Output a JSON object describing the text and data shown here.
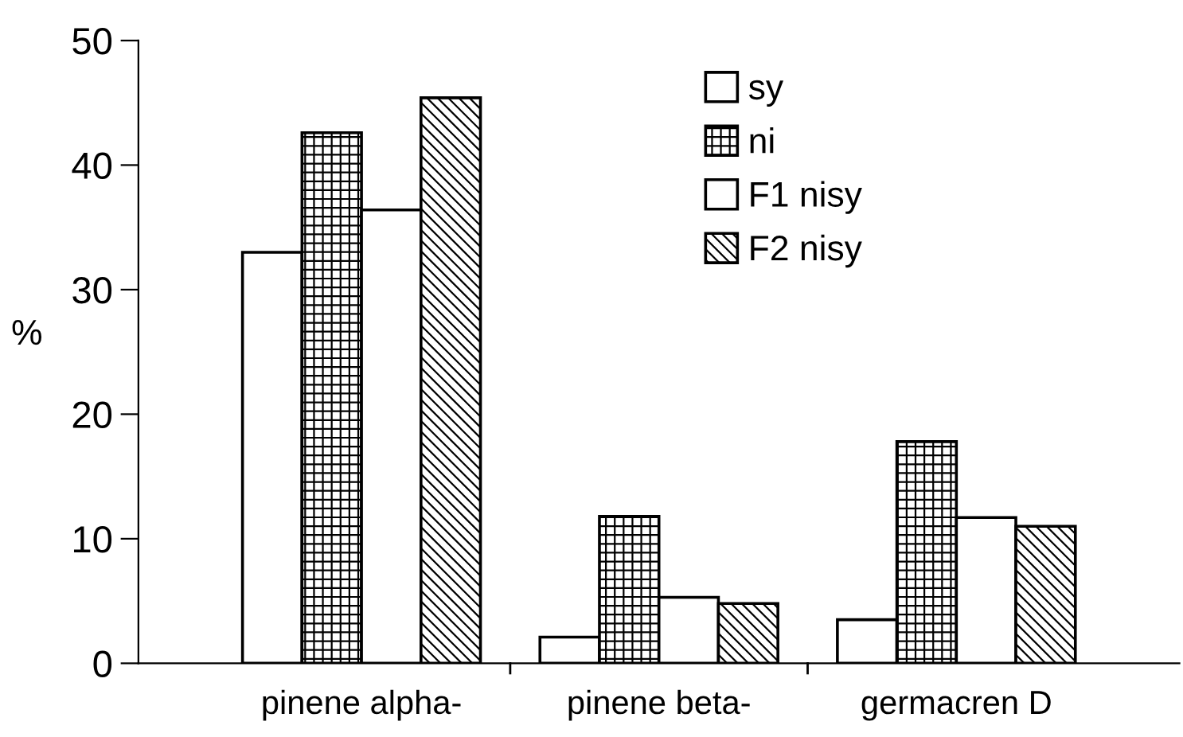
{
  "chart_data": {
    "type": "bar",
    "ylabel": "%",
    "categories": [
      "pinene alpha-",
      "pinene beta-",
      "germacren D"
    ],
    "series": [
      {
        "name": "sy",
        "color": "#ffffff",
        "values": [
          33.0,
          2.1,
          3.5
        ]
      },
      {
        "name": "ni",
        "color": "#000000",
        "values": [
          42.6,
          11.8,
          17.8
        ]
      },
      {
        "name": "F1 nisy",
        "color": "#ffffff",
        "values": [
          36.4,
          5.3,
          11.7
        ]
      },
      {
        "name": "F2 nisy",
        "color": "#000000",
        "values": [
          45.4,
          4.8,
          11.0
        ]
      }
    ],
    "ylim": [
      0,
      50
    ],
    "yticks": [
      0,
      10,
      20,
      30,
      40,
      50
    ],
    "grid": false,
    "legend": "top"
  }
}
